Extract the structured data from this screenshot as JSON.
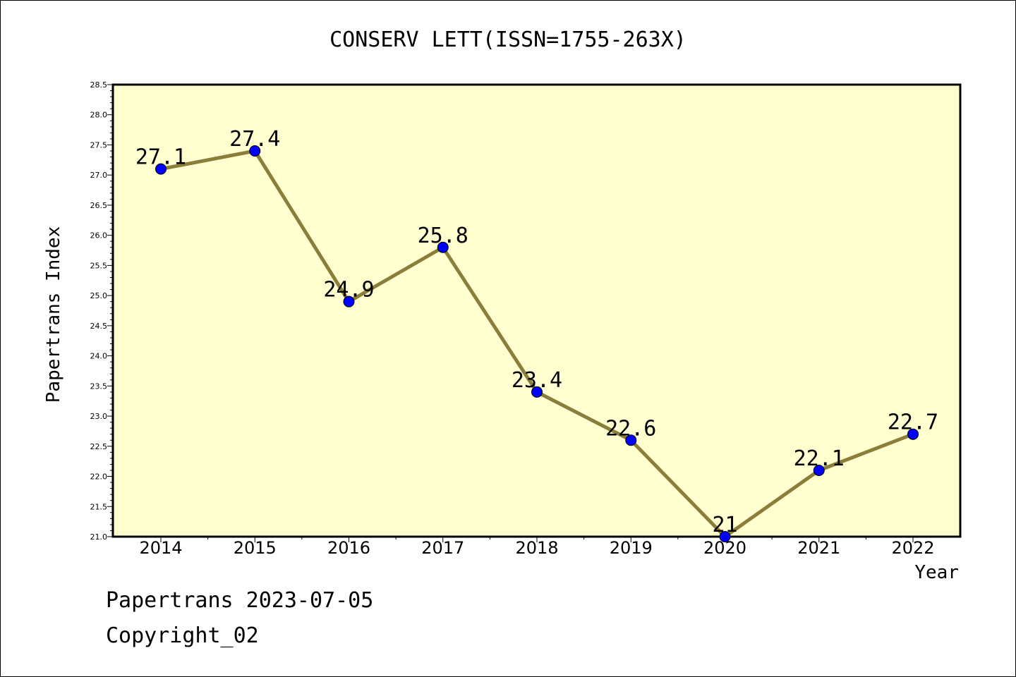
{
  "chart_data": {
    "type": "line",
    "title": "CONSERV LETT(ISSN=1755-263X)",
    "xlabel": "Year",
    "ylabel": "Papertrans Index",
    "categories": [
      "2014",
      "2015",
      "2016",
      "2017",
      "2018",
      "2019",
      "2020",
      "2021",
      "2022"
    ],
    "values": [
      27.1,
      27.4,
      24.9,
      25.8,
      23.4,
      22.6,
      21.0,
      22.1,
      22.7
    ],
    "data_labels": [
      "27.1",
      "27.4",
      "24.9",
      "25.8",
      "23.4",
      "22.6",
      "21",
      "22.1",
      "22.7"
    ],
    "ylim": [
      21.0,
      28.5
    ],
    "ymajor_step": 0.5,
    "yticks": [
      "21.0",
      "21.5",
      "22.0",
      "22.5",
      "23.0",
      "23.5",
      "24.0",
      "24.5",
      "25.0",
      "25.5",
      "26.0",
      "26.5",
      "27.0",
      "27.5",
      "28.0",
      "28.5"
    ],
    "grid": false,
    "colors": {
      "plot_background": "#ffffd0",
      "line": "#8b7d3a",
      "marker": "#0000ff"
    }
  },
  "footer": {
    "stamp": "Papertrans 2023-07-05",
    "copyright": "Copyright_02"
  }
}
